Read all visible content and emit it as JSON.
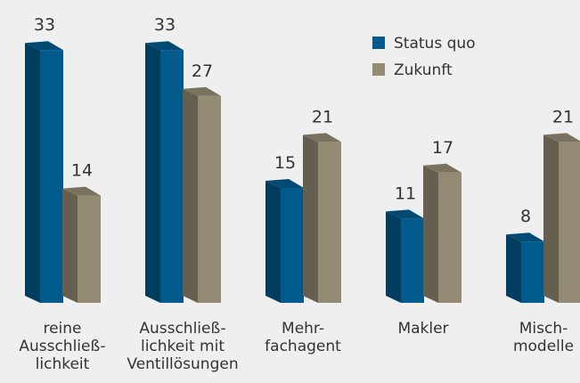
{
  "chart_data": {
    "type": "bar",
    "categories": [
      "reine\nAusschließ-\nlichkeit",
      "Ausschließ-\nlichkeit mit\nVentillösungen",
      "Mehr-\nfachagent",
      "Makler",
      "Misch-\nmodelle"
    ],
    "series": [
      {
        "name": "Status quo",
        "color": "#005a8c",
        "values": [
          33,
          33,
          15,
          11,
          8
        ]
      },
      {
        "name": "Zukunft",
        "color": "#938b74",
        "values": [
          14,
          27,
          21,
          17,
          21
        ]
      }
    ],
    "legend": "top-right"
  }
}
